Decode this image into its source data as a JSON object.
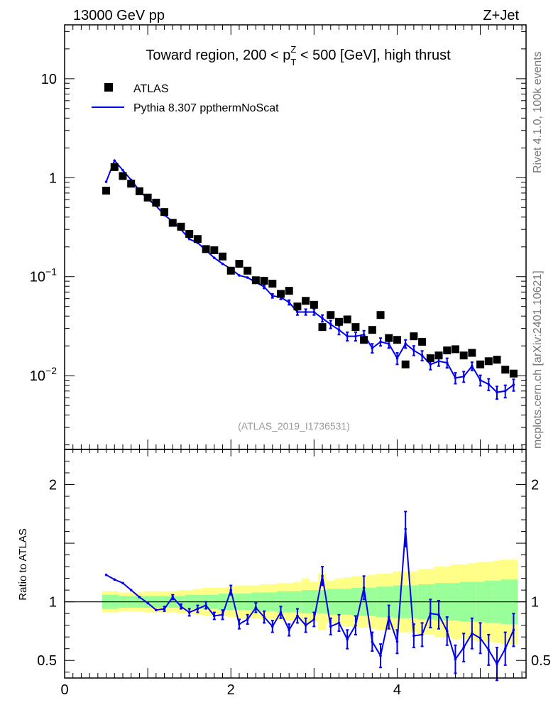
{
  "header": {
    "left": "13000 GeV pp",
    "right": "Z+Jet"
  },
  "side_labels": {
    "rivet": "Rivet 4.1.0,  100k events",
    "mcplots": "mcplots.cern.ch [arXiv:2401.10621]"
  },
  "chart_data": {
    "type": "line",
    "title": "Toward region, 200 < p_T^Z < 500 [GeV], high thrust",
    "title_parts": {
      "pre": "Toward region, 200 < p",
      "sup": "Z",
      "sub": "T",
      "post": " < 500 [GeV], high thrust"
    },
    "reference": "(ATLAS_2019_I1736531)",
    "legend": {
      "position": "top-left",
      "entries": [
        {
          "name": "ATLAS",
          "style": "black-square-marker"
        },
        {
          "name": "Pythia 8.307 ppthermNoScat",
          "style": "blue-line"
        }
      ]
    },
    "colors": {
      "data": "#000000",
      "mc": "#0000ee",
      "band_inner": "#99ff99",
      "band_outer": "#ffff88"
    },
    "xlim": [
      0,
      5.55
    ],
    "main": {
      "yscale": "log",
      "ylim": [
        0.0018,
        35
      ],
      "yticks": [
        {
          "value": 10,
          "base": "10",
          "exp": ""
        },
        {
          "value": 1,
          "base": "1",
          "exp": ""
        },
        {
          "value": 0.1,
          "base": "10",
          "exp": "−1"
        },
        {
          "value": 0.01,
          "base": "10",
          "exp": "−2"
        }
      ]
    },
    "ratio": {
      "ylabel": "Ratio to ATLAS",
      "ylim": [
        0.35,
        2.3
      ],
      "yticks": [
        {
          "value": 2,
          "label": "2"
        },
        {
          "value": 1,
          "label": "1"
        },
        {
          "value": 0.5,
          "label": "0.5"
        }
      ]
    },
    "xticks": [
      {
        "value": 0,
        "label": "0"
      },
      {
        "value": 2,
        "label": "2"
      },
      {
        "value": 4,
        "label": "4"
      }
    ],
    "x": [
      0.5,
      0.6,
      0.7,
      0.8,
      0.9,
      1.0,
      1.1,
      1.2,
      1.3,
      1.4,
      1.5,
      1.6,
      1.7,
      1.8,
      1.9,
      2.0,
      2.1,
      2.2,
      2.3,
      2.4,
      2.5,
      2.6,
      2.7,
      2.8,
      2.9,
      3.0,
      3.1,
      3.2,
      3.3,
      3.4,
      3.5,
      3.6,
      3.7,
      3.8,
      3.9,
      4.0,
      4.1,
      4.2,
      4.3,
      4.4,
      4.5,
      4.6,
      4.7,
      4.8,
      4.9,
      5.0,
      5.1,
      5.2,
      5.3,
      5.4
    ],
    "series": [
      {
        "name": "ATLAS",
        "values": [
          0.74,
          1.28,
          1.04,
          0.87,
          0.73,
          0.63,
          0.56,
          0.45,
          0.35,
          0.32,
          0.27,
          0.24,
          0.19,
          0.185,
          0.16,
          0.115,
          0.135,
          0.115,
          0.092,
          0.091,
          0.085,
          0.067,
          0.072,
          0.05,
          0.057,
          0.052,
          0.031,
          0.041,
          0.035,
          0.037,
          0.031,
          0.023,
          0.029,
          0.041,
          0.024,
          0.023,
          0.013,
          0.025,
          0.022,
          0.015,
          0.016,
          0.018,
          0.0185,
          0.016,
          0.017,
          0.013,
          0.014,
          0.0145,
          0.0115,
          0.0105
        ]
      },
      {
        "name": "Pythia 8.307 ppthermNoScat",
        "values": [
          0.91,
          1.49,
          1.19,
          0.95,
          0.74,
          0.61,
          0.52,
          0.42,
          0.36,
          0.3,
          0.24,
          0.22,
          0.185,
          0.155,
          0.135,
          0.12,
          0.103,
          0.098,
          0.088,
          0.079,
          0.064,
          0.062,
          0.055,
          0.044,
          0.044,
          0.044,
          0.038,
          0.033,
          0.029,
          0.025,
          0.025,
          0.026,
          0.019,
          0.022,
          0.021,
          0.015,
          0.021,
          0.018,
          0.016,
          0.013,
          0.014,
          0.0135,
          0.0095,
          0.0098,
          0.0125,
          0.009,
          0.0082,
          0.0068,
          0.007,
          0.0081
        ],
        "errors": [
          0,
          0,
          0,
          0,
          0,
          0,
          0,
          0,
          0,
          0,
          0,
          0,
          0,
          0,
          0,
          0,
          0,
          0,
          0,
          0.003,
          0.003,
          0.003,
          0.003,
          0.003,
          0.003,
          0.003,
          0.003,
          0.003,
          0.003,
          0.0025,
          0.0025,
          0.0025,
          0.002,
          0.002,
          0.002,
          0.002,
          0.002,
          0.002,
          0.0018,
          0.0015,
          0.0015,
          0.0015,
          0.0012,
          0.0012,
          0.0012,
          0.0011,
          0.0011,
          0.001,
          0.001,
          0.0011
        ]
      }
    ],
    "ratio_values": [
      1.23,
      1.19,
      1.16,
      1.1,
      1.04,
      0.99,
      0.93,
      0.94,
      1.04,
      0.96,
      0.91,
      0.94,
      0.97,
      0.88,
      0.89,
      1.1,
      0.81,
      0.85,
      0.95,
      0.87,
      0.79,
      0.91,
      0.76,
      0.88,
      0.8,
      0.85,
      1.22,
      0.79,
      0.82,
      0.68,
      0.8,
      1.12,
      0.66,
      0.54,
      0.87,
      0.66,
      1.62,
      0.71,
      0.72,
      0.9,
      0.89,
      0.75,
      0.51,
      0.61,
      0.73,
      0.69,
      0.59,
      0.47,
      0.6,
      0.76
    ],
    "ratio_errors": [
      0.01,
      0.01,
      0.01,
      0.01,
      0.01,
      0.01,
      0.01,
      0.02,
      0.02,
      0.02,
      0.03,
      0.03,
      0.03,
      0.03,
      0.04,
      0.04,
      0.04,
      0.04,
      0.04,
      0.05,
      0.05,
      0.05,
      0.05,
      0.06,
      0.06,
      0.06,
      0.08,
      0.07,
      0.07,
      0.08,
      0.08,
      0.1,
      0.08,
      0.1,
      0.1,
      0.1,
      0.15,
      0.1,
      0.1,
      0.12,
      0.12,
      0.12,
      0.12,
      0.12,
      0.13,
      0.13,
      0.13,
      0.14,
      0.14,
      0.14
    ],
    "band_inner": [
      0.06,
      0.06,
      0.05,
      0.05,
      0.05,
      0.05,
      0.05,
      0.05,
      0.05,
      0.05,
      0.06,
      0.06,
      0.06,
      0.06,
      0.07,
      0.07,
      0.07,
      0.07,
      0.08,
      0.08,
      0.08,
      0.09,
      0.09,
      0.09,
      0.1,
      0.1,
      0.1,
      0.11,
      0.11,
      0.11,
      0.12,
      0.12,
      0.12,
      0.13,
      0.13,
      0.14,
      0.14,
      0.14,
      0.15,
      0.15,
      0.16,
      0.16,
      0.16,
      0.17,
      0.17,
      0.17,
      0.18,
      0.18,
      0.19,
      0.19
    ],
    "band_outer": [
      0.09,
      0.09,
      0.08,
      0.08,
      0.08,
      0.09,
      0.09,
      0.09,
      0.09,
      0.1,
      0.1,
      0.11,
      0.12,
      0.12,
      0.12,
      0.13,
      0.14,
      0.14,
      0.14,
      0.15,
      0.15,
      0.16,
      0.16,
      0.17,
      0.2,
      0.17,
      0.24,
      0.18,
      0.2,
      0.21,
      0.22,
      0.22,
      0.23,
      0.24,
      0.24,
      0.26,
      0.26,
      0.26,
      0.28,
      0.28,
      0.3,
      0.3,
      0.32,
      0.32,
      0.33,
      0.34,
      0.34,
      0.35,
      0.36,
      0.36
    ]
  }
}
